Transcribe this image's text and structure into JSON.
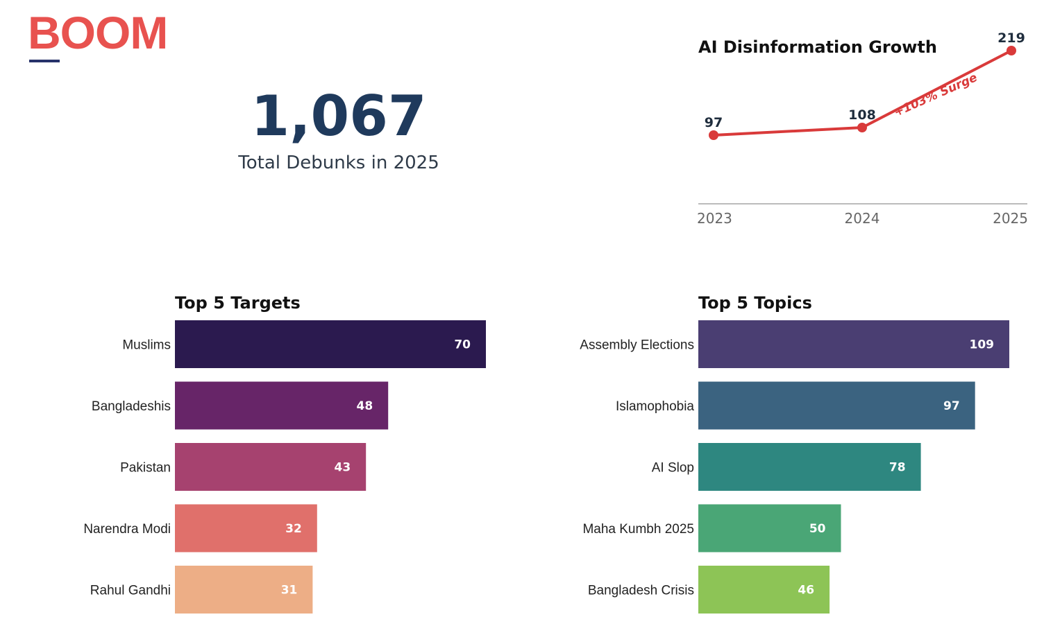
{
  "logo": {
    "text": "BOOM"
  },
  "kpi": {
    "value": "1,067",
    "label": "Total Debunks in 2025"
  },
  "colors": {
    "line": "#d93a3a",
    "axis": "#bbbbbb",
    "targets": [
      "#2b1a4f",
      "#672568",
      "#a6426f",
      "#e0706b",
      "#edae86"
    ],
    "topics": [
      "#4a3e72",
      "#3b6380",
      "#2e8780",
      "#4aa676",
      "#8dc456"
    ]
  },
  "chart_data": [
    {
      "type": "line",
      "title": "AI Disinformation Growth",
      "x": [
        "2023",
        "2024",
        "2025"
      ],
      "values": [
        97,
        108,
        219
      ],
      "point_labels": [
        "97",
        "108",
        "219"
      ],
      "annotation": "+103% Surge",
      "ylim": [
        0,
        230
      ]
    },
    {
      "type": "bar",
      "orientation": "horizontal",
      "title": "Top 5 Targets",
      "categories": [
        "Muslims",
        "Bangladeshis",
        "Pakistan",
        "Narendra Modi",
        "Rahul Gandhi"
      ],
      "values": [
        70,
        48,
        43,
        32,
        31
      ],
      "xlim": [
        0,
        70
      ]
    },
    {
      "type": "bar",
      "orientation": "horizontal",
      "title": "Top 5 Topics",
      "categories": [
        "Assembly Elections",
        "Islamophobia",
        "AI Slop",
        "Maha Kumbh 2025",
        "Bangladesh Crisis"
      ],
      "values": [
        109,
        97,
        78,
        50,
        46
      ],
      "xlim": [
        0,
        109
      ]
    }
  ]
}
